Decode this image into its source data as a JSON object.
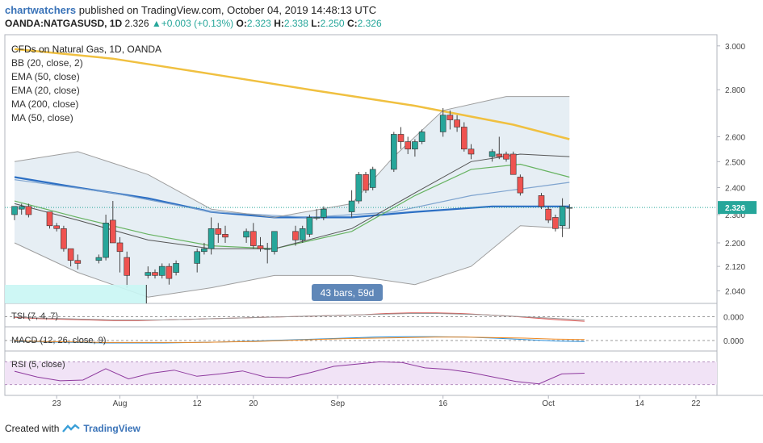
{
  "header": {
    "publisher": "chartwatchers",
    "published_text": "published on TradingView.com, October 04, 2019 14:48:13 UTC",
    "symbol": "OANDA:NATGASUSD, 1D",
    "last": "2.326",
    "change": "+0.003 (+0.13%)",
    "open_label": "O:",
    "open": "2.323",
    "high_label": "H:",
    "high": "2.338",
    "low_label": "L:",
    "low": "2.250",
    "close_label": "C:",
    "close": "2.326"
  },
  "legend": [
    "CFDs on Natural Gas, 1D, OANDA",
    "BB (20, close, 2)",
    "EMA (50, close)",
    "EMA (20, close)",
    "MA (200, close)",
    "MA (50, close)"
  ],
  "range_label": "43 bars, 59d",
  "price_tag": "2.326",
  "footer": {
    "created_with": "Created with",
    "brand": "TradingView"
  },
  "colors": {
    "up": "#26a69a",
    "down": "#ef5350",
    "ema50": "#f0c040",
    "ma50": "#2c6fc4",
    "ma200": "#7fa4cf",
    "ema20": "#67b361",
    "bb": "#9e9e9e",
    "bbfill": "#e6eef4",
    "tag": "#26a69a",
    "range": "#5f87b8"
  },
  "chart_data": [
    {
      "type": "candlestick",
      "title": "CFDs on Natural Gas, 1D, OANDA",
      "y_scale": "log",
      "ylim": [
        2.0,
        3.03
      ],
      "y_ticks": [
        "3.000",
        "2.800",
        "2.600",
        "2.500",
        "2.400",
        "2.300",
        "2.200",
        "2.120",
        "2.040"
      ],
      "x_ticks": [
        "23",
        "Aug",
        "12",
        "20",
        "Sep",
        "16",
        "Oct",
        "14",
        "22"
      ],
      "candles": [
        {
          "d": "2019-07-17",
          "o": 2.3,
          "h": 2.33,
          "l": 2.28,
          "c": 2.33
        },
        {
          "d": "2019-07-18",
          "o": 2.32,
          "h": 2.34,
          "l": 2.3,
          "c": 2.33
        },
        {
          "d": "2019-07-19",
          "o": 2.33,
          "h": 2.34,
          "l": 2.29,
          "c": 2.3
        },
        {
          "d": "2019-07-22",
          "o": 2.31,
          "h": 2.31,
          "l": 2.25,
          "c": 2.26
        },
        {
          "d": "2019-07-23",
          "o": 2.26,
          "h": 2.27,
          "l": 2.24,
          "c": 2.25
        },
        {
          "d": "2019-07-24",
          "o": 2.25,
          "h": 2.26,
          "l": 2.17,
          "c": 2.18
        },
        {
          "d": "2019-07-25",
          "o": 2.18,
          "h": 2.18,
          "l": 2.12,
          "c": 2.14
        },
        {
          "d": "2019-07-26",
          "o": 2.14,
          "h": 2.16,
          "l": 2.11,
          "c": 2.13
        },
        {
          "d": "2019-07-29",
          "o": 2.14,
          "h": 2.16,
          "l": 2.13,
          "c": 2.15
        },
        {
          "d": "2019-07-30",
          "o": 2.15,
          "h": 2.3,
          "l": 2.14,
          "c": 2.27
        },
        {
          "d": "2019-07-31",
          "o": 2.28,
          "h": 2.35,
          "l": 2.2,
          "c": 2.2
        },
        {
          "d": "2019-08-01",
          "o": 2.2,
          "h": 2.22,
          "l": 2.1,
          "c": 2.17
        },
        {
          "d": "2019-08-02",
          "o": 2.15,
          "h": 2.17,
          "l": 2.05,
          "c": 2.09
        },
        {
          "d": "2019-08-05",
          "o": 2.09,
          "h": 2.12,
          "l": 2.08,
          "c": 2.1
        },
        {
          "d": "2019-08-06",
          "o": 2.1,
          "h": 2.11,
          "l": 2.08,
          "c": 2.09
        },
        {
          "d": "2019-08-07",
          "o": 2.09,
          "h": 2.13,
          "l": 2.08,
          "c": 2.12
        },
        {
          "d": "2019-08-08",
          "o": 2.12,
          "h": 2.13,
          "l": 2.06,
          "c": 2.08
        },
        {
          "d": "2019-08-09",
          "o": 2.1,
          "h": 2.14,
          "l": 2.09,
          "c": 2.13
        },
        {
          "d": "2019-08-12",
          "o": 2.13,
          "h": 2.18,
          "l": 2.1,
          "c": 2.17
        },
        {
          "d": "2019-08-13",
          "o": 2.17,
          "h": 2.2,
          "l": 2.16,
          "c": 2.18
        },
        {
          "d": "2019-08-14",
          "o": 2.18,
          "h": 2.29,
          "l": 2.16,
          "c": 2.25
        },
        {
          "d": "2019-08-15",
          "o": 2.25,
          "h": 2.27,
          "l": 2.2,
          "c": 2.23
        },
        {
          "d": "2019-08-16",
          "o": 2.23,
          "h": 2.26,
          "l": 2.2,
          "c": 2.22
        },
        {
          "d": "2019-08-19",
          "o": 2.22,
          "h": 2.25,
          "l": 2.2,
          "c": 2.24
        },
        {
          "d": "2019-08-20",
          "o": 2.24,
          "h": 2.27,
          "l": 2.18,
          "c": 2.19
        },
        {
          "d": "2019-08-21",
          "o": 2.19,
          "h": 2.22,
          "l": 2.17,
          "c": 2.18
        },
        {
          "d": "2019-08-22",
          "o": 2.18,
          "h": 2.2,
          "l": 2.13,
          "c": 2.18
        },
        {
          "d": "2019-08-23",
          "o": 2.17,
          "h": 2.24,
          "l": 2.16,
          "c": 2.24
        },
        {
          "d": "2019-08-26",
          "o": 2.24,
          "h": 2.26,
          "l": 2.19,
          "c": 2.21
        },
        {
          "d": "2019-08-27",
          "o": 2.21,
          "h": 2.26,
          "l": 2.2,
          "c": 2.25
        },
        {
          "d": "2019-08-28",
          "o": 2.23,
          "h": 2.3,
          "l": 2.22,
          "c": 2.29
        },
        {
          "d": "2019-08-29",
          "o": 2.29,
          "h": 2.32,
          "l": 2.28,
          "c": 2.29
        },
        {
          "d": "2019-08-30",
          "o": 2.29,
          "h": 2.33,
          "l": 2.28,
          "c": 2.32
        },
        {
          "d": "2019-09-03",
          "o": 2.31,
          "h": 2.39,
          "l": 2.29,
          "c": 2.35
        },
        {
          "d": "2019-09-04",
          "o": 2.35,
          "h": 2.46,
          "l": 2.34,
          "c": 2.45
        },
        {
          "d": "2019-09-05",
          "o": 2.45,
          "h": 2.46,
          "l": 2.38,
          "c": 2.39
        },
        {
          "d": "2019-09-06",
          "o": 2.4,
          "h": 2.48,
          "l": 2.39,
          "c": 2.47
        },
        {
          "d": "2019-09-09",
          "o": 2.47,
          "h": 2.62,
          "l": 2.46,
          "c": 2.61
        },
        {
          "d": "2019-09-10",
          "o": 2.61,
          "h": 2.64,
          "l": 2.55,
          "c": 2.58
        },
        {
          "d": "2019-09-11",
          "o": 2.58,
          "h": 2.6,
          "l": 2.53,
          "c": 2.55
        },
        {
          "d": "2019-09-12",
          "o": 2.55,
          "h": 2.59,
          "l": 2.52,
          "c": 2.58
        },
        {
          "d": "2019-09-13",
          "o": 2.58,
          "h": 2.63,
          "l": 2.57,
          "c": 2.62
        },
        {
          "d": "2019-09-16",
          "o": 2.62,
          "h": 2.72,
          "l": 2.6,
          "c": 2.69
        },
        {
          "d": "2019-09-17",
          "o": 2.69,
          "h": 2.71,
          "l": 2.63,
          "c": 2.67
        },
        {
          "d": "2019-09-18",
          "o": 2.67,
          "h": 2.69,
          "l": 2.62,
          "c": 2.64
        },
        {
          "d": "2019-09-19",
          "o": 2.64,
          "h": 2.66,
          "l": 2.54,
          "c": 2.55
        },
        {
          "d": "2019-09-20",
          "o": 2.55,
          "h": 2.57,
          "l": 2.51,
          "c": 2.53
        },
        {
          "d": "2019-09-23",
          "o": 2.52,
          "h": 2.55,
          "l": 2.5,
          "c": 2.54
        },
        {
          "d": "2019-09-24",
          "o": 2.53,
          "h": 2.6,
          "l": 2.51,
          "c": 2.52
        },
        {
          "d": "2019-09-25",
          "o": 2.53,
          "h": 2.54,
          "l": 2.5,
          "c": 2.51
        },
        {
          "d": "2019-09-26",
          "o": 2.53,
          "h": 2.54,
          "l": 2.45,
          "c": 2.45
        },
        {
          "d": "2019-09-27",
          "o": 2.44,
          "h": 2.45,
          "l": 2.37,
          "c": 2.38
        },
        {
          "d": "2019-09-30",
          "o": 2.37,
          "h": 2.38,
          "l": 2.32,
          "c": 2.33
        },
        {
          "d": "2019-10-01",
          "o": 2.32,
          "h": 2.33,
          "l": 2.27,
          "c": 2.28
        },
        {
          "d": "2019-10-02",
          "o": 2.29,
          "h": 2.3,
          "l": 2.24,
          "c": 2.25
        },
        {
          "d": "2019-10-03",
          "o": 2.26,
          "h": 2.36,
          "l": 2.22,
          "c": 2.33
        },
        {
          "d": "2019-10-04",
          "o": 2.323,
          "h": 2.338,
          "l": 2.25,
          "c": 2.326
        }
      ],
      "overlays": [
        {
          "name": "EMA (50, close)",
          "points": [
            [
              "2019-07-17",
              2.985
            ],
            [
              "2019-07-31",
              2.94
            ],
            [
              "2019-08-14",
              2.87
            ],
            [
              "2019-08-28",
              2.8
            ],
            [
              "2019-09-12",
              2.73
            ],
            [
              "2019-09-26",
              2.65
            ],
            [
              "2019-10-04",
              2.59
            ]
          ]
        },
        {
          "name": "MA (50, close)",
          "points": [
            [
              "2019-07-17",
              2.44
            ],
            [
              "2019-07-26",
              2.4
            ],
            [
              "2019-08-05",
              2.36
            ],
            [
              "2019-08-14",
              2.31
            ],
            [
              "2019-08-23",
              2.29
            ],
            [
              "2019-09-03",
              2.29
            ],
            [
              "2019-09-12",
              2.31
            ],
            [
              "2019-09-23",
              2.33
            ],
            [
              "2019-10-04",
              2.33
            ]
          ]
        },
        {
          "name": "MA (200, close)",
          "points": [
            [
              "2019-07-17",
              2.43
            ],
            [
              "2019-07-31",
              2.38
            ],
            [
              "2019-08-14",
              2.31
            ],
            [
              "2019-08-28",
              2.29
            ],
            [
              "2019-09-09",
              2.31
            ],
            [
              "2019-09-20",
              2.37
            ],
            [
              "2019-10-04",
              2.42
            ]
          ]
        },
        {
          "name": "EMA (20, close)",
          "points": [
            [
              "2019-07-17",
              2.35
            ],
            [
              "2019-07-26",
              2.29
            ],
            [
              "2019-08-05",
              2.23
            ],
            [
              "2019-08-14",
              2.19
            ],
            [
              "2019-08-23",
              2.18
            ],
            [
              "2019-09-03",
              2.24
            ],
            [
              "2019-09-12",
              2.37
            ],
            [
              "2019-09-20",
              2.47
            ],
            [
              "2019-09-27",
              2.49
            ],
            [
              "2019-10-04",
              2.44
            ]
          ]
        },
        {
          "name": "BB basis",
          "points": [
            [
              "2019-07-17",
              2.34
            ],
            [
              "2019-07-26",
              2.28
            ],
            [
              "2019-08-05",
              2.21
            ],
            [
              "2019-08-14",
              2.18
            ],
            [
              "2019-08-23",
              2.18
            ],
            [
              "2019-09-03",
              2.25
            ],
            [
              "2019-09-12",
              2.38
            ],
            [
              "2019-09-20",
              2.5
            ],
            [
              "2019-09-27",
              2.53
            ],
            [
              "2019-10-04",
              2.52
            ]
          ]
        },
        {
          "name": "BB upper",
          "points": [
            [
              "2019-07-17",
              2.5
            ],
            [
              "2019-07-26",
              2.54
            ],
            [
              "2019-08-05",
              2.45
            ],
            [
              "2019-08-14",
              2.32
            ],
            [
              "2019-08-23",
              2.29
            ],
            [
              "2019-09-03",
              2.34
            ],
            [
              "2019-09-09",
              2.52
            ],
            [
              "2019-09-16",
              2.71
            ],
            [
              "2019-09-25",
              2.77
            ],
            [
              "2019-10-04",
              2.77
            ]
          ]
        },
        {
          "name": "BB lower",
          "points": [
            [
              "2019-07-17",
              2.2
            ],
            [
              "2019-07-26",
              2.1
            ],
            [
              "2019-08-05",
              2.02
            ],
            [
              "2019-08-14",
              2.05
            ],
            [
              "2019-08-23",
              2.09
            ],
            [
              "2019-09-03",
              2.09
            ],
            [
              "2019-09-12",
              2.06
            ],
            [
              "2019-09-20",
              2.12
            ],
            [
              "2019-09-27",
              2.26
            ],
            [
              "2019-10-04",
              2.25
            ]
          ]
        }
      ]
    },
    {
      "type": "line",
      "title": "TSI (7, 4, 7)",
      "y_ticks": [
        "0.000"
      ],
      "series": [
        {
          "name": "TSI",
          "values": [
            -0.1,
            -0.3,
            -0.4,
            -0.5,
            -0.6,
            -0.6,
            -0.5,
            -0.4,
            -0.3,
            -0.2,
            -0.1,
            0.0,
            0.1,
            0.2,
            0.3,
            0.5,
            0.6,
            0.6,
            0.5,
            0.3,
            0.1,
            -0.2,
            -0.5,
            -0.7
          ]
        },
        {
          "name": "Signal",
          "values": [
            0.0,
            -0.2,
            -0.3,
            -0.4,
            -0.5,
            -0.5,
            -0.5,
            -0.4,
            -0.3,
            -0.2,
            -0.1,
            0.0,
            0.1,
            0.2,
            0.3,
            0.4,
            0.5,
            0.5,
            0.4,
            0.3,
            0.1,
            -0.1,
            -0.3,
            -0.5
          ]
        }
      ]
    },
    {
      "type": "line",
      "title": "MACD (12, 26, close, 9)",
      "y_ticks": [
        "0.000"
      ],
      "series": [
        {
          "name": "MACD",
          "values": [
            -0.02,
            -0.03,
            -0.04,
            -0.05,
            -0.05,
            -0.05,
            -0.04,
            -0.03,
            -0.01,
            0.01,
            0.03,
            0.05,
            0.07,
            0.08,
            0.08,
            0.07,
            0.05,
            0.02,
            -0.01,
            -0.02
          ]
        },
        {
          "name": "Signal",
          "values": [
            -0.01,
            -0.02,
            -0.03,
            -0.04,
            -0.04,
            -0.04,
            -0.04,
            -0.03,
            -0.02,
            0.0,
            0.02,
            0.04,
            0.05,
            0.06,
            0.07,
            0.07,
            0.06,
            0.05,
            0.03,
            0.02
          ]
        }
      ]
    },
    {
      "type": "line",
      "title": "RSI (5, close)",
      "series": [
        {
          "name": "RSI",
          "values": [
            55,
            40,
            30,
            32,
            62,
            35,
            50,
            58,
            42,
            48,
            56,
            40,
            38,
            52,
            68,
            74,
            80,
            78,
            64,
            60,
            52,
            40,
            28,
            22,
            48,
            50
          ]
        }
      ]
    }
  ]
}
